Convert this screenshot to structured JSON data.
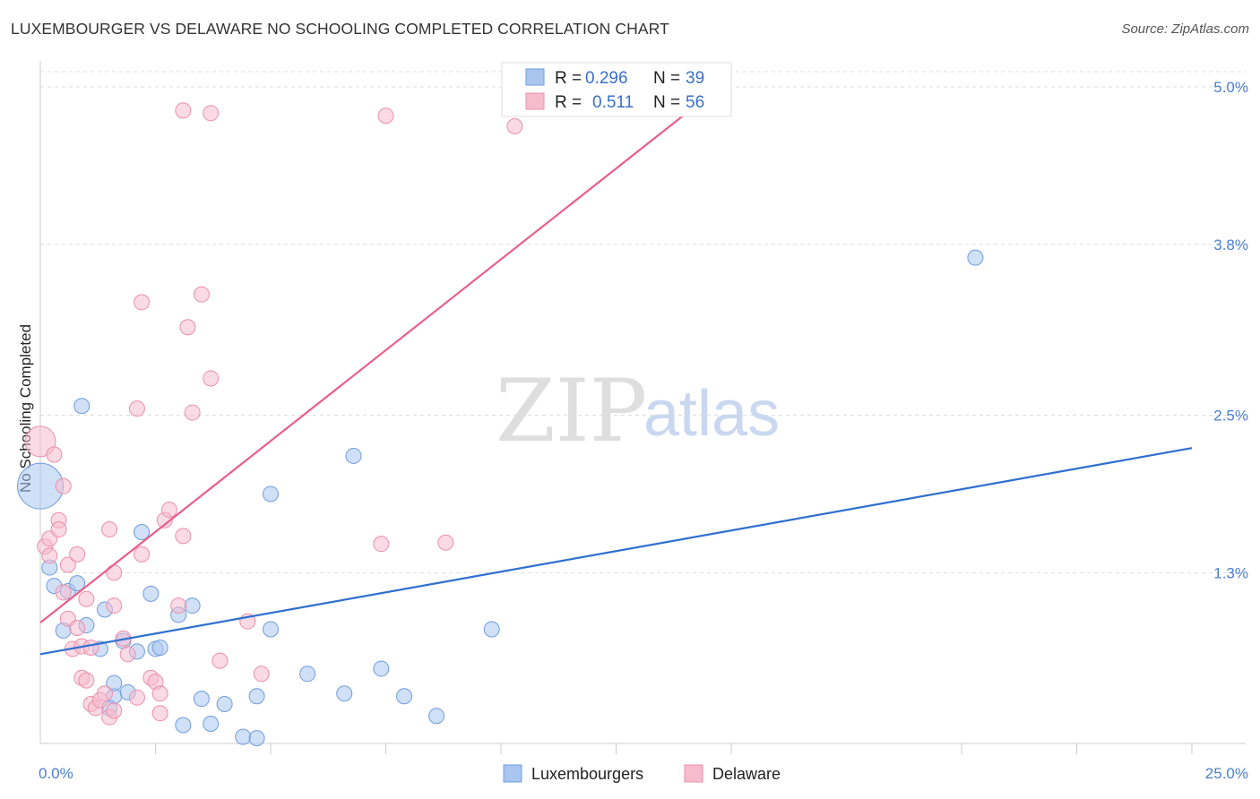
{
  "title": "LUXEMBOURGER VS DELAWARE NO SCHOOLING COMPLETED CORRELATION CHART",
  "source": "Source: ZipAtlas.com",
  "watermark": {
    "zip": "ZIP",
    "atlas": "atlas"
  },
  "colors": {
    "blue_fill": "#aac6ef",
    "blue_stroke": "#6f9ce0",
    "blue_line": "#2f6fd0",
    "pink_fill": "#f6bccd",
    "pink_stroke": "#eb8fab",
    "pink_line": "#e8608a",
    "grid": "#dddddd",
    "axis_label": "#4a7fd0"
  },
  "legend": {
    "rows": [
      {
        "name": "Luxembourgers",
        "r_label": "R =",
        "r_value": "0.296",
        "n_label": "N =",
        "n_value": "39"
      },
      {
        "name": "Delaware",
        "r_label": "R =",
        "r_value": "0.511",
        "n_label": "N =",
        "n_value": "56"
      }
    ]
  },
  "chart_data": {
    "type": "scatter",
    "title": "LUXEMBOURGER VS DELAWARE NO SCHOOLING COMPLETED CORRELATION CHART",
    "xlabel": "",
    "ylabel": "No Schooling Completed",
    "xlim": [
      0,
      25
    ],
    "ylim": [
      0,
      5.0
    ],
    "x_tick_labels": [
      "0.0%",
      "25.0%"
    ],
    "y_ticks": [
      1.3,
      2.5,
      3.8,
      5.0
    ],
    "y_tick_labels": [
      "1.3%",
      "2.5%",
      "3.8%",
      "5.0%"
    ],
    "x_minor_ticks": [
      2.5,
      5.0,
      7.5,
      10.0,
      12.5,
      15.0,
      20.0,
      22.5
    ],
    "grid": true,
    "legend_position": "top-center",
    "series": [
      {
        "name": "Luxembourgers",
        "color": "#aac6ef",
        "points": [
          [
            0.0,
            1.96,
            3.0
          ],
          [
            0.2,
            1.34,
            1.0
          ],
          [
            0.3,
            1.2,
            1.0
          ],
          [
            0.5,
            0.86,
            1.0
          ],
          [
            0.6,
            1.16,
            1.0
          ],
          [
            0.8,
            1.22,
            1.0
          ],
          [
            0.9,
            2.57,
            1.0
          ],
          [
            1.0,
            0.9,
            1.0
          ],
          [
            1.3,
            0.72,
            1.0
          ],
          [
            1.4,
            1.02,
            1.0
          ],
          [
            1.6,
            0.36,
            1.0
          ],
          [
            1.5,
            0.27,
            1.0
          ],
          [
            1.6,
            0.46,
            1.0
          ],
          [
            1.8,
            0.78,
            1.0
          ],
          [
            1.9,
            0.39,
            1.0
          ],
          [
            2.1,
            0.7,
            1.0
          ],
          [
            2.2,
            1.61,
            1.0
          ],
          [
            2.4,
            1.14,
            1.0
          ],
          [
            2.5,
            0.72,
            1.0
          ],
          [
            2.6,
            0.73,
            1.0
          ],
          [
            3.0,
            0.98,
            1.0
          ],
          [
            3.1,
            0.14,
            1.0
          ],
          [
            3.3,
            1.05,
            1.0
          ],
          [
            3.5,
            0.34,
            1.0
          ],
          [
            3.7,
            0.15,
            1.0
          ],
          [
            4.0,
            0.3,
            1.0
          ],
          [
            4.4,
            0.05,
            1.0
          ],
          [
            4.7,
            0.04,
            1.0
          ],
          [
            4.7,
            0.36,
            1.0
          ],
          [
            5.0,
            1.9,
            1.0
          ],
          [
            5.0,
            0.87,
            1.0
          ],
          [
            5.8,
            0.53,
            1.0
          ],
          [
            6.6,
            0.38,
            1.0
          ],
          [
            6.8,
            2.19,
            1.0
          ],
          [
            7.4,
            0.57,
            1.0
          ],
          [
            7.9,
            0.36,
            1.0
          ],
          [
            8.6,
            0.21,
            1.0
          ],
          [
            9.8,
            0.87,
            1.0
          ],
          [
            20.3,
            3.7,
            1.0
          ]
        ]
      },
      {
        "name": "Delaware",
        "color": "#f6bccd",
        "points": [
          [
            0.0,
            2.3,
            2.0
          ],
          [
            0.1,
            1.5,
            1.0
          ],
          [
            0.2,
            1.43,
            1.0
          ],
          [
            0.2,
            1.56,
            1.0
          ],
          [
            0.3,
            2.2,
            1.0
          ],
          [
            0.4,
            1.7,
            1.0
          ],
          [
            0.4,
            1.63,
            1.0
          ],
          [
            0.5,
            1.96,
            1.0
          ],
          [
            0.5,
            1.15,
            1.0
          ],
          [
            0.6,
            1.36,
            1.0
          ],
          [
            0.6,
            0.95,
            1.0
          ],
          [
            0.7,
            0.72,
            1.0
          ],
          [
            0.8,
            1.44,
            1.0
          ],
          [
            0.8,
            0.88,
            1.0
          ],
          [
            0.9,
            0.5,
            1.0
          ],
          [
            0.9,
            0.74,
            1.0
          ],
          [
            1.0,
            0.48,
            1.0
          ],
          [
            1.0,
            1.1,
            1.0
          ],
          [
            1.1,
            0.3,
            1.0
          ],
          [
            1.1,
            0.73,
            1.0
          ],
          [
            1.2,
            0.27,
            1.0
          ],
          [
            1.3,
            0.33,
            1.0
          ],
          [
            1.4,
            0.38,
            1.0
          ],
          [
            1.5,
            1.63,
            1.0
          ],
          [
            1.5,
            0.2,
            1.0
          ],
          [
            1.6,
            1.05,
            1.0
          ],
          [
            1.6,
            1.3,
            1.0
          ],
          [
            1.6,
            0.25,
            1.0
          ],
          [
            1.8,
            0.8,
            1.0
          ],
          [
            1.9,
            0.68,
            1.0
          ],
          [
            2.1,
            0.35,
            1.0
          ],
          [
            2.1,
            2.55,
            1.0
          ],
          [
            2.2,
            3.36,
            1.0
          ],
          [
            2.2,
            1.44,
            1.0
          ],
          [
            2.4,
            0.5,
            1.0
          ],
          [
            2.5,
            0.47,
            1.0
          ],
          [
            2.6,
            0.23,
            1.0
          ],
          [
            2.6,
            0.38,
            1.0
          ],
          [
            2.7,
            1.7,
            1.0
          ],
          [
            2.8,
            1.78,
            1.0
          ],
          [
            3.0,
            1.05,
            1.0
          ],
          [
            3.1,
            4.82,
            1.0
          ],
          [
            3.1,
            1.58,
            1.0
          ],
          [
            3.2,
            3.17,
            1.0
          ],
          [
            3.3,
            2.52,
            1.0
          ],
          [
            3.5,
            3.42,
            1.0
          ],
          [
            3.7,
            2.78,
            1.0
          ],
          [
            3.7,
            4.8,
            1.0
          ],
          [
            3.9,
            0.63,
            1.0
          ],
          [
            4.5,
            0.93,
            1.0
          ],
          [
            4.8,
            0.53,
            1.0
          ],
          [
            7.4,
            1.52,
            1.0
          ],
          [
            7.5,
            4.78,
            1.0
          ],
          [
            8.8,
            1.53,
            1.0
          ],
          [
            10.3,
            4.7,
            1.0
          ]
        ]
      }
    ],
    "trend_lines": [
      {
        "series": "Luxembourgers",
        "x": [
          0,
          25
        ],
        "y": [
          0.68,
          2.25
        ]
      },
      {
        "series": "Delaware",
        "x": [
          0,
          15
        ],
        "y": [
          0.92,
          5.07
        ]
      }
    ]
  }
}
